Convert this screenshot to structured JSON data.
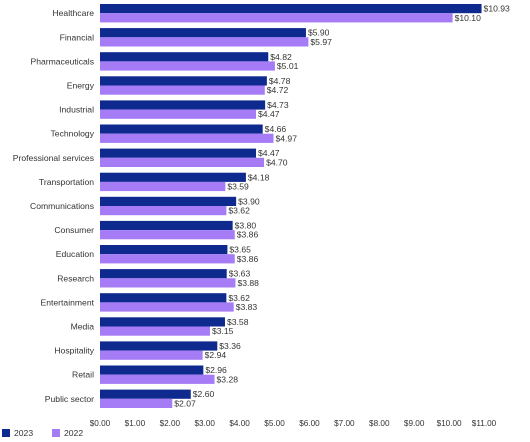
{
  "chart_data": {
    "type": "bar",
    "orientation": "horizontal",
    "categories": [
      "Healthcare",
      "Financial",
      "Pharmaceuticals",
      "Energy",
      "Industrial",
      "Technology",
      "Professional services",
      "Transportation",
      "Communications",
      "Consumer",
      "Education",
      "Research",
      "Entertainment",
      "Media",
      "Hospitality",
      "Retail",
      "Public sector"
    ],
    "series": [
      {
        "name": "2023",
        "color": "#0f2a8f",
        "values": [
          10.93,
          5.9,
          4.82,
          4.78,
          4.73,
          4.66,
          4.47,
          4.18,
          3.9,
          3.8,
          3.65,
          3.63,
          3.62,
          3.58,
          3.36,
          2.96,
          2.6
        ],
        "labels": [
          "$10.93",
          "$5.90",
          "$4.82",
          "$4.78",
          "$4.73",
          "$4.66",
          "$4.47",
          "$4.18",
          "$3.90",
          "$3.80",
          "$3.65",
          "$3.63",
          "$3.62",
          "$3.58",
          "$3.36",
          "$2.96",
          "$2.60"
        ]
      },
      {
        "name": "2022",
        "color": "#a57cf5",
        "values": [
          10.1,
          5.97,
          5.01,
          4.72,
          4.47,
          4.97,
          4.7,
          3.59,
          3.62,
          3.86,
          3.86,
          3.88,
          3.83,
          3.15,
          2.94,
          3.28,
          2.07
        ],
        "labels": [
          "$10.10",
          "$5.97",
          "$5.01",
          "$4.72",
          "$4.47",
          "$4.97",
          "$4.70",
          "$3.59",
          "$3.62",
          "$3.86",
          "$3.86",
          "$3.88",
          "$3.83",
          "$3.15",
          "$2.94",
          "$3.28",
          "$2.07"
        ]
      }
    ],
    "xlim": [
      0,
      11
    ],
    "xticks": [
      0,
      1,
      2,
      3,
      4,
      5,
      6,
      7,
      8,
      9,
      10,
      11
    ],
    "xtick_labels": [
      "$0.00",
      "$1.00",
      "$2.00",
      "$3.00",
      "$4.00",
      "$5.00",
      "$6.00",
      "$7.00",
      "$8.00",
      "$9.00",
      "$10.00",
      "$11.00"
    ],
    "legend": [
      "2023",
      "2022"
    ],
    "legend_placement": "bottom-left",
    "grid": false
  }
}
